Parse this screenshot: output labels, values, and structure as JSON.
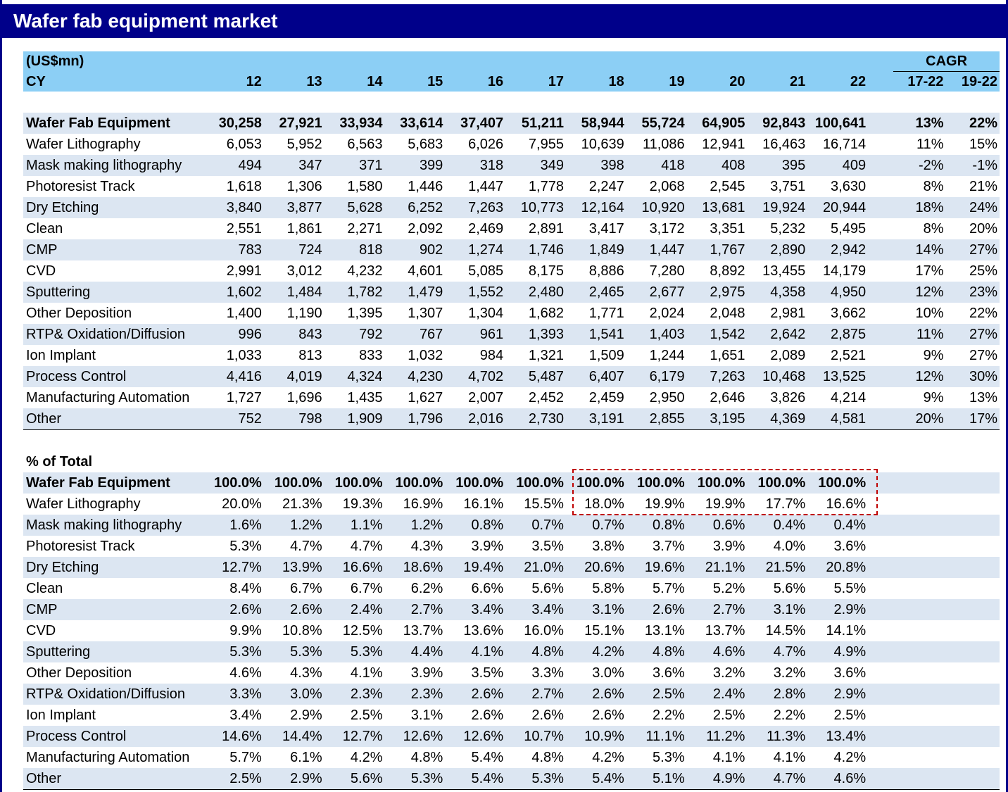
{
  "title": "Wafer fab equipment market",
  "header": {
    "unit": "(US$mn)",
    "cagr_label": "CAGR",
    "cy_label": "CY",
    "years": [
      "12",
      "13",
      "14",
      "15",
      "16",
      "17",
      "18",
      "19",
      "20",
      "21",
      "22"
    ],
    "cagr_cols": [
      "17-22",
      "19-22"
    ]
  },
  "values": {
    "rows": [
      {
        "label": "Wafer Fab Equipment",
        "vals": [
          "30,258",
          "27,921",
          "33,934",
          "33,614",
          "37,407",
          "51,211",
          "58,944",
          "55,724",
          "64,905",
          "92,843",
          "100,641"
        ],
        "cagr": [
          "13%",
          "22%"
        ]
      },
      {
        "label": "Wafer Lithography",
        "vals": [
          "6,053",
          "5,952",
          "6,563",
          "5,683",
          "6,026",
          "7,955",
          "10,639",
          "11,086",
          "12,941",
          "16,463",
          "16,714"
        ],
        "cagr": [
          "11%",
          "15%"
        ]
      },
      {
        "label": "Mask making lithography",
        "vals": [
          "494",
          "347",
          "371",
          "399",
          "318",
          "349",
          "398",
          "418",
          "408",
          "395",
          "409"
        ],
        "cagr": [
          "-2%",
          "-1%"
        ]
      },
      {
        "label": "Photoresist Track",
        "vals": [
          "1,618",
          "1,306",
          "1,580",
          "1,446",
          "1,447",
          "1,778",
          "2,247",
          "2,068",
          "2,545",
          "3,751",
          "3,630"
        ],
        "cagr": [
          "8%",
          "21%"
        ]
      },
      {
        "label": "Dry Etching",
        "vals": [
          "3,840",
          "3,877",
          "5,628",
          "6,252",
          "7,263",
          "10,773",
          "12,164",
          "10,920",
          "13,681",
          "19,924",
          "20,944"
        ],
        "cagr": [
          "18%",
          "24%"
        ]
      },
      {
        "label": "Clean",
        "vals": [
          "2,551",
          "1,861",
          "2,271",
          "2,092",
          "2,469",
          "2,891",
          "3,417",
          "3,172",
          "3,351",
          "5,232",
          "5,495"
        ],
        "cagr": [
          "8%",
          "20%"
        ]
      },
      {
        "label": "CMP",
        "vals": [
          "783",
          "724",
          "818",
          "902",
          "1,274",
          "1,746",
          "1,849",
          "1,447",
          "1,767",
          "2,890",
          "2,942"
        ],
        "cagr": [
          "14%",
          "27%"
        ]
      },
      {
        "label": "CVD",
        "vals": [
          "2,991",
          "3,012",
          "4,232",
          "4,601",
          "5,085",
          "8,175",
          "8,886",
          "7,280",
          "8,892",
          "13,455",
          "14,179"
        ],
        "cagr": [
          "17%",
          "25%"
        ]
      },
      {
        "label": "Sputtering",
        "vals": [
          "1,602",
          "1,484",
          "1,782",
          "1,479",
          "1,552",
          "2,480",
          "2,465",
          "2,677",
          "2,975",
          "4,358",
          "4,950"
        ],
        "cagr": [
          "12%",
          "23%"
        ]
      },
      {
        "label": "Other Deposition",
        "vals": [
          "1,400",
          "1,190",
          "1,395",
          "1,307",
          "1,304",
          "1,682",
          "1,771",
          "2,024",
          "2,048",
          "2,981",
          "3,662"
        ],
        "cagr": [
          "10%",
          "22%"
        ]
      },
      {
        "label": "RTP& Oxidation/Diffusion",
        "vals": [
          "996",
          "843",
          "792",
          "767",
          "961",
          "1,393",
          "1,541",
          "1,403",
          "1,542",
          "2,642",
          "2,875"
        ],
        "cagr": [
          "11%",
          "27%"
        ]
      },
      {
        "label": "Ion Implant",
        "vals": [
          "1,033",
          "813",
          "833",
          "1,032",
          "984",
          "1,321",
          "1,509",
          "1,244",
          "1,651",
          "2,089",
          "2,521"
        ],
        "cagr": [
          "9%",
          "27%"
        ]
      },
      {
        "label": "Process Control",
        "vals": [
          "4,416",
          "4,019",
          "4,324",
          "4,230",
          "4,702",
          "5,487",
          "6,407",
          "6,179",
          "7,263",
          "10,468",
          "13,525"
        ],
        "cagr": [
          "12%",
          "30%"
        ]
      },
      {
        "label": "Manufacturing Automation",
        "vals": [
          "1,727",
          "1,696",
          "1,435",
          "1,627",
          "2,007",
          "2,452",
          "2,459",
          "2,950",
          "2,646",
          "3,826",
          "4,214"
        ],
        "cagr": [
          "9%",
          "13%"
        ]
      },
      {
        "label": "Other",
        "vals": [
          "752",
          "798",
          "1,909",
          "1,796",
          "2,016",
          "2,730",
          "3,191",
          "2,855",
          "3,195",
          "4,369",
          "4,581"
        ],
        "cagr": [
          "20%",
          "17%"
        ]
      }
    ]
  },
  "percent": {
    "section_label": "% of Total",
    "rows": [
      {
        "label": "Wafer Fab Equipment",
        "vals": [
          "100.0%",
          "100.0%",
          "100.0%",
          "100.0%",
          "100.0%",
          "100.0%",
          "100.0%",
          "100.0%",
          "100.0%",
          "100.0%",
          "100.0%"
        ]
      },
      {
        "label": "Wafer Lithography",
        "vals": [
          "20.0%",
          "21.3%",
          "19.3%",
          "16.9%",
          "16.1%",
          "15.5%",
          "18.0%",
          "19.9%",
          "19.9%",
          "17.7%",
          "16.6%"
        ]
      },
      {
        "label": "Mask making lithography",
        "vals": [
          "1.6%",
          "1.2%",
          "1.1%",
          "1.2%",
          "0.8%",
          "0.7%",
          "0.7%",
          "0.8%",
          "0.6%",
          "0.4%",
          "0.4%"
        ]
      },
      {
        "label": "Photoresist Track",
        "vals": [
          "5.3%",
          "4.7%",
          "4.7%",
          "4.3%",
          "3.9%",
          "3.5%",
          "3.8%",
          "3.7%",
          "3.9%",
          "4.0%",
          "3.6%"
        ]
      },
      {
        "label": "Dry Etching",
        "vals": [
          "12.7%",
          "13.9%",
          "16.6%",
          "18.6%",
          "19.4%",
          "21.0%",
          "20.6%",
          "19.6%",
          "21.1%",
          "21.5%",
          "20.8%"
        ]
      },
      {
        "label": "Clean",
        "vals": [
          "8.4%",
          "6.7%",
          "6.7%",
          "6.2%",
          "6.6%",
          "5.6%",
          "5.8%",
          "5.7%",
          "5.2%",
          "5.6%",
          "5.5%"
        ]
      },
      {
        "label": "CMP",
        "vals": [
          "2.6%",
          "2.6%",
          "2.4%",
          "2.7%",
          "3.4%",
          "3.4%",
          "3.1%",
          "2.6%",
          "2.7%",
          "3.1%",
          "2.9%"
        ]
      },
      {
        "label": "CVD",
        "vals": [
          "9.9%",
          "10.8%",
          "12.5%",
          "13.7%",
          "13.6%",
          "16.0%",
          "15.1%",
          "13.1%",
          "13.7%",
          "14.5%",
          "14.1%"
        ]
      },
      {
        "label": "Sputtering",
        "vals": [
          "5.3%",
          "5.3%",
          "5.3%",
          "4.4%",
          "4.1%",
          "4.8%",
          "4.2%",
          "4.8%",
          "4.6%",
          "4.7%",
          "4.9%"
        ]
      },
      {
        "label": "Other Deposition",
        "vals": [
          "4.6%",
          "4.3%",
          "4.1%",
          "3.9%",
          "3.5%",
          "3.3%",
          "3.0%",
          "3.6%",
          "3.2%",
          "3.2%",
          "3.6%"
        ]
      },
      {
        "label": "RTP& Oxidation/Diffusion",
        "vals": [
          "3.3%",
          "3.0%",
          "2.3%",
          "2.3%",
          "2.6%",
          "2.7%",
          "2.6%",
          "2.5%",
          "2.4%",
          "2.8%",
          "2.9%"
        ]
      },
      {
        "label": "Ion Implant",
        "vals": [
          "3.4%",
          "2.9%",
          "2.5%",
          "3.1%",
          "2.6%",
          "2.6%",
          "2.6%",
          "2.2%",
          "2.5%",
          "2.2%",
          "2.5%"
        ]
      },
      {
        "label": "Process Control",
        "vals": [
          "14.6%",
          "14.4%",
          "12.7%",
          "12.6%",
          "12.6%",
          "10.7%",
          "10.9%",
          "11.1%",
          "11.2%",
          "11.3%",
          "13.4%"
        ]
      },
      {
        "label": "Manufacturing Automation",
        "vals": [
          "5.7%",
          "6.1%",
          "4.2%",
          "4.8%",
          "5.4%",
          "4.8%",
          "4.2%",
          "5.3%",
          "4.1%",
          "4.1%",
          "4.2%"
        ]
      },
      {
        "label": "Other",
        "vals": [
          "2.5%",
          "2.9%",
          "5.6%",
          "5.3%",
          "5.4%",
          "5.3%",
          "5.4%",
          "5.1%",
          "4.9%",
          "4.7%",
          "4.6%"
        ]
      }
    ]
  },
  "highlight_color": "#c00000",
  "header_color": "#00008a",
  "band_color": "#dce6f2",
  "header_row_color": "#8ccff5"
}
